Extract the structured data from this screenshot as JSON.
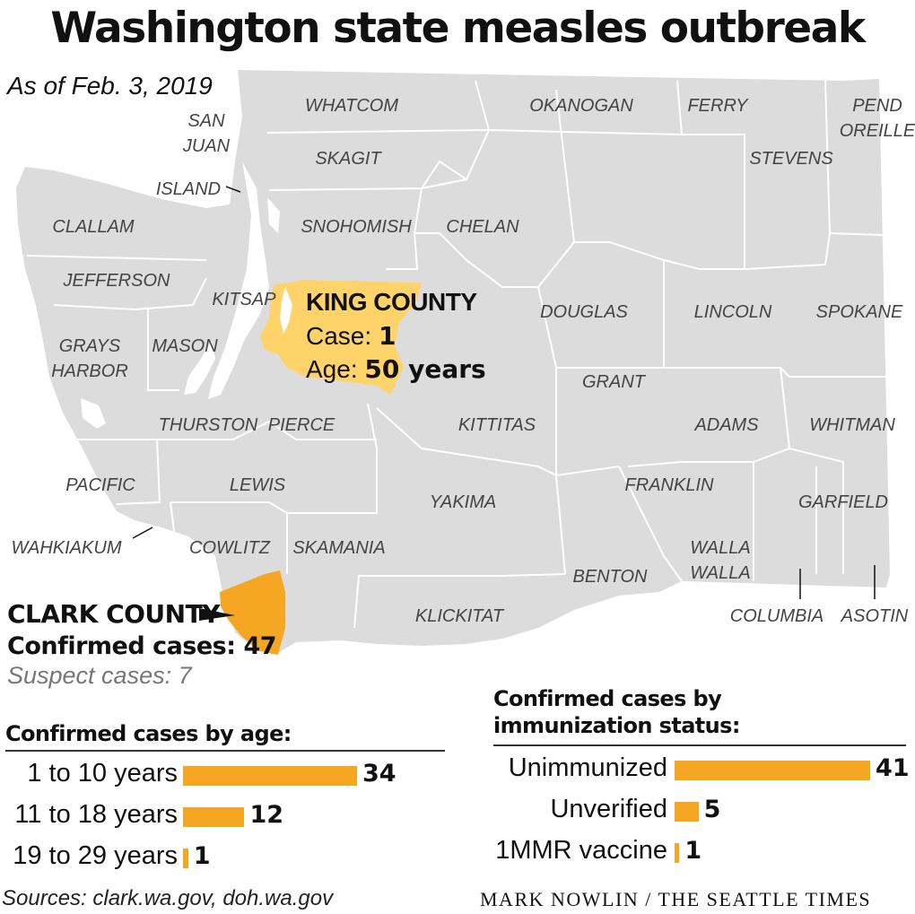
{
  "title": "Washington state measles outbreak",
  "as_of": "As of Feb. 3, 2019",
  "colors": {
    "map_gray": "#dcdcdc",
    "king": "#fdd36a",
    "clark": "#f5a623",
    "bar": "#f5a623"
  },
  "counties": [
    "WHATCOM",
    "OKANOGAN",
    "FERRY",
    "PEND",
    "OREILLE",
    "SAN",
    "JUAN",
    "SKAGIT",
    "STEVENS",
    "ISLAND",
    "CLALLAM",
    "SNOHOMISH",
    "CHELAN",
    "JEFFERSON",
    "KITSAP",
    "DOUGLAS",
    "LINCOLN",
    "SPOKANE",
    "GRAYS",
    "HARBOR",
    "MASON",
    "GRANT",
    "THURSTON",
    "PIERCE",
    "KITTITAS",
    "ADAMS",
    "WHITMAN",
    "PACIFIC",
    "LEWIS",
    "FRANKLIN",
    "YAKIMA",
    "GARFIELD",
    "WAHKIAKUM",
    "COWLITZ",
    "SKAMANIA",
    "WALLA",
    "WALLA",
    "BENTON",
    "KLICKITAT",
    "COLUMBIA",
    "ASOTIN"
  ],
  "king": {
    "name": "KING COUNTY",
    "case_label": "Case:",
    "case_value": "1",
    "age_label": "Age:",
    "age_value": "50 years"
  },
  "clark": {
    "name": "CLARK COUNTY",
    "confirmed_label": "Confirmed cases:",
    "confirmed_value": "47",
    "suspect": "Suspect cases: 7"
  },
  "chart_data": [
    {
      "type": "bar",
      "title": "Confirmed cases by age:",
      "categories": [
        "1 to 10 years",
        "11 to 18 years",
        "19 to 29 years"
      ],
      "values": [
        34,
        12,
        1
      ]
    },
    {
      "type": "bar",
      "title": "Confirmed cases by immunization status:",
      "title_lines": [
        "Confirmed cases by",
        "immunization status:"
      ],
      "categories": [
        "Unimmunized",
        "Unverified",
        "1MMR vaccine"
      ],
      "values": [
        41,
        5,
        1
      ]
    }
  ],
  "sources": "Sources: clark.wa.gov, doh.wa.gov",
  "credit": "MARK NOWLIN / THE SEATTLE TIMES"
}
